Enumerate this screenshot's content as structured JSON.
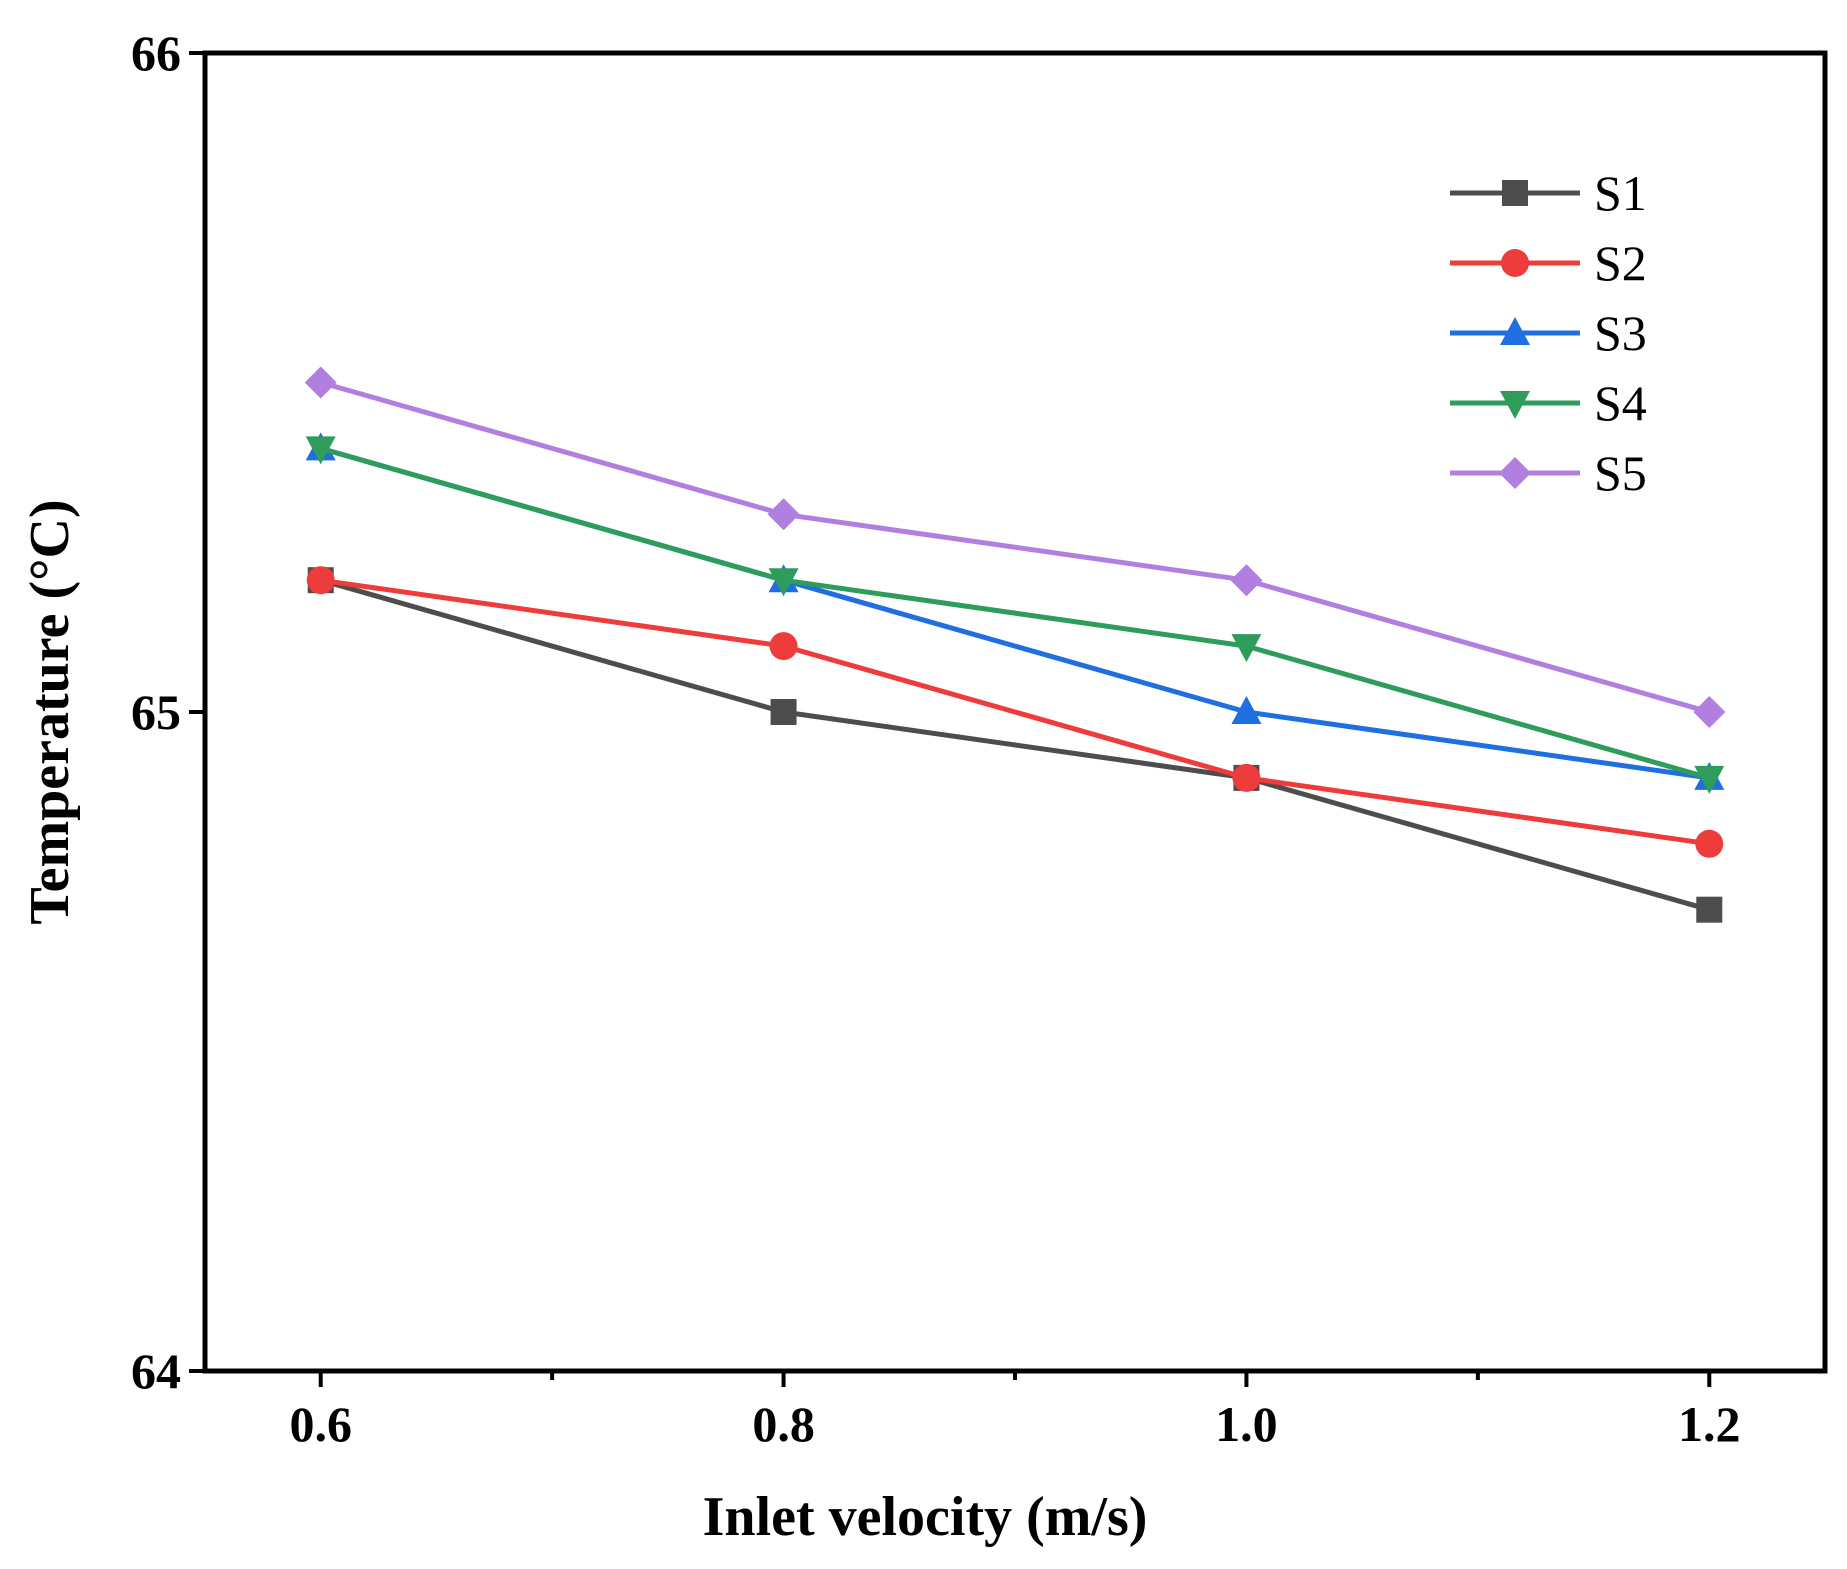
{
  "chart_data": {
    "type": "line",
    "title": "",
    "xlabel": "Inlet velocity (m/s)",
    "ylabel": "Temperature (°C)",
    "x": [
      0.6,
      0.8,
      1.0,
      1.2
    ],
    "x_tick_labels": [
      "0.6",
      "0.8",
      "1.0",
      "1.2"
    ],
    "y_tick_labels": [
      "64",
      "65",
      "66"
    ],
    "y_ticks": [
      64,
      65,
      66
    ],
    "xlim": [
      0.55,
      1.25
    ],
    "ylim": [
      64,
      66
    ],
    "legend_position": "top-right",
    "series": [
      {
        "name": "S1",
        "color": "#4d4d4d",
        "marker": "square",
        "values": [
          65.2,
          65.0,
          64.9,
          64.7
        ]
      },
      {
        "name": "S2",
        "color": "#ee3b3b",
        "marker": "circle",
        "values": [
          65.2,
          65.1,
          64.9,
          64.8
        ]
      },
      {
        "name": "S3",
        "color": "#1f6fe0",
        "marker": "triangle-up",
        "values": [
          65.4,
          65.2,
          65.0,
          64.9
        ]
      },
      {
        "name": "S4",
        "color": "#2e9c5a",
        "marker": "triangle-down",
        "values": [
          65.4,
          65.2,
          65.1,
          64.9
        ]
      },
      {
        "name": "S5",
        "color": "#b07fe0",
        "marker": "diamond",
        "values": [
          65.5,
          65.3,
          65.2,
          65.0
        ]
      }
    ]
  }
}
